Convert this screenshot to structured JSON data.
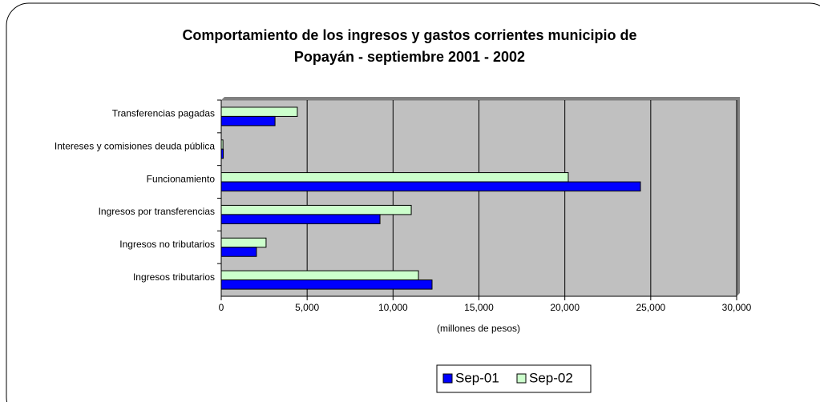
{
  "chart_data": {
    "type": "hbar",
    "title": [
      "Comportamiento de los ingresos y gastos corrientes municipio de",
      "Popayán - septiembre 2001 - 2002"
    ],
    "xlabel": "(millones de pesos)",
    "categories": [
      "Transferencias pagadas",
      "Intereses y comisiones deuda pública",
      "Funcionamiento",
      "Ingresos por transferencias",
      "Ingresos no tributarios",
      "Ingresos tributarios"
    ],
    "series": [
      {
        "name": "Sep-02",
        "color": "#ccffcc",
        "values": [
          4430,
          100,
          20200,
          11060,
          2610,
          11480
        ]
      },
      {
        "name": "Sep-01",
        "color": "#0000ff",
        "values": [
          3130,
          120,
          24400,
          9240,
          2050,
          12270
        ]
      }
    ],
    "xlim": [
      0,
      30000
    ],
    "xticks": [
      0,
      {
        "value": 5000,
        "label": "5,000"
      },
      {
        "value": 10000,
        "label": "10,000"
      },
      {
        "value": 15000,
        "label": "15,000"
      },
      {
        "value": 20000,
        "label": "20,000"
      },
      {
        "value": 25000,
        "label": "25,000"
      },
      {
        "value": 30000,
        "label": "30,000"
      }
    ],
    "grid": true,
    "legend": "bottom",
    "plot_background": "#c0c0c0"
  }
}
